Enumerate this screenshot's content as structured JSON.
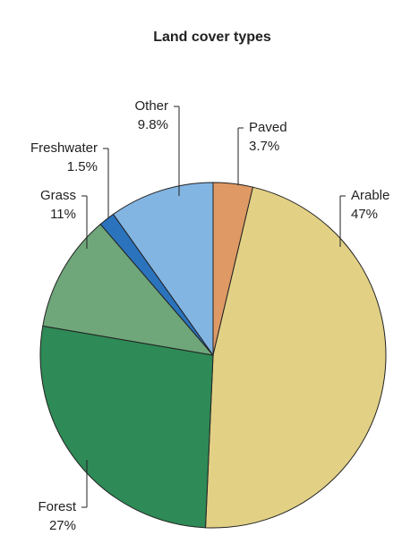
{
  "chart_data": {
    "type": "pie",
    "title": "Land cover types",
    "categories": [
      "Paved",
      "Arable",
      "Forest",
      "Grass",
      "Freshwater",
      "Other"
    ],
    "values": [
      3.7,
      47,
      27,
      11,
      1.5,
      9.8
    ],
    "value_labels": [
      "3.7%",
      "47%",
      "27%",
      "11%",
      "1.5%",
      "9.8%"
    ],
    "colors": [
      "#df9964",
      "#e2d085",
      "#2e8a56",
      "#6fa67a",
      "#2b73bd",
      "#83b5e2"
    ]
  }
}
